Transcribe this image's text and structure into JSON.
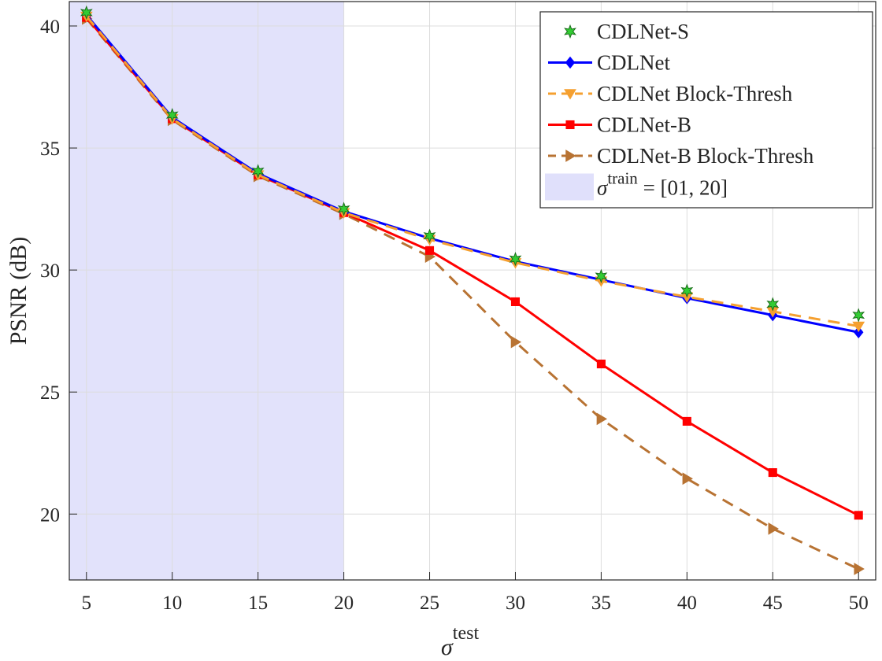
{
  "chart_data": {
    "type": "line",
    "title": "",
    "xlabel": {
      "symbol": "σ",
      "superscript": "test"
    },
    "ylabel": "PSNR (dB)",
    "xlim": [
      4,
      51
    ],
    "ylim": [
      17.3,
      41
    ],
    "x": [
      5,
      10,
      15,
      20,
      25,
      30,
      35,
      40,
      45,
      50
    ],
    "xticks": [
      5,
      10,
      15,
      20,
      25,
      30,
      35,
      40,
      45,
      50
    ],
    "yticks": [
      20,
      25,
      30,
      35,
      40
    ],
    "grid": true,
    "legend_position": "top-right",
    "shaded_region": {
      "x_start": 4,
      "x_end": 20,
      "color": "#e0e0fb",
      "label_symbol": "σ",
      "label_superscript": "train",
      "label_rest": " = [01, 20]"
    },
    "series": [
      {
        "name": "CDLNet-S",
        "color": "#33cc33",
        "line": "none",
        "marker": "star",
        "values": [
          40.55,
          36.35,
          34.05,
          32.5,
          31.4,
          30.45,
          29.75,
          29.15,
          28.6,
          28.15
        ]
      },
      {
        "name": "CDLNet",
        "color": "#0000ff",
        "line": "solid",
        "marker": "diamond",
        "values": [
          40.45,
          36.25,
          33.95,
          32.4,
          31.3,
          30.35,
          29.6,
          28.85,
          28.15,
          27.45
        ]
      },
      {
        "name": "CDLNet Block-Thresh",
        "color": "#f5a030",
        "line": "dashed",
        "marker": "triangle-down",
        "values": [
          40.4,
          36.2,
          33.9,
          32.35,
          31.25,
          30.3,
          29.55,
          28.9,
          28.3,
          27.7
        ]
      },
      {
        "name": "CDLNet-B",
        "color": "#ff0000",
        "line": "solid",
        "marker": "square",
        "values": [
          40.35,
          36.2,
          33.9,
          32.35,
          30.8,
          28.7,
          26.15,
          23.8,
          21.7,
          19.95
        ]
      },
      {
        "name": "CDLNet-B Block-Thresh",
        "color": "#b87333",
        "line": "dashed",
        "marker": "triangle-right",
        "values": [
          40.3,
          36.15,
          33.85,
          32.3,
          30.55,
          27.05,
          23.9,
          21.45,
          19.4,
          17.75
        ]
      }
    ]
  }
}
